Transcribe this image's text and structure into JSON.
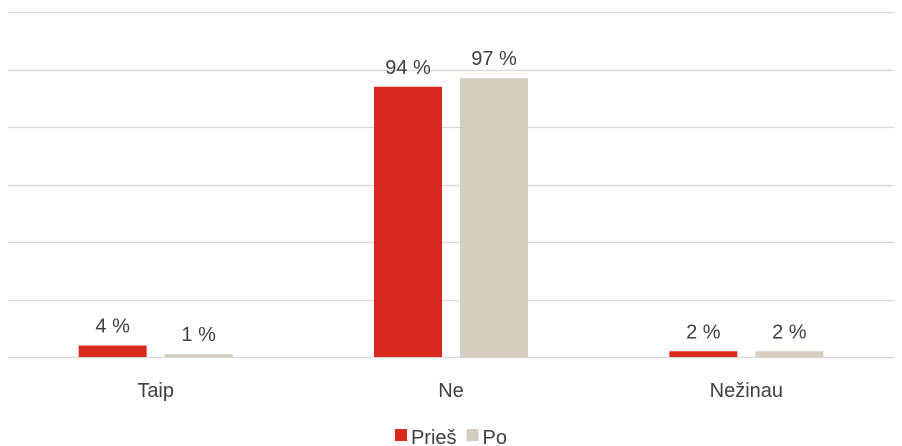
{
  "chart_data": {
    "type": "bar",
    "title": "",
    "xlabel": "",
    "ylabel": "",
    "ylim": [
      0,
      120
    ],
    "y_tick_step": 20,
    "grid": true,
    "categories": [
      "Taip",
      "Ne",
      "Nežinau"
    ],
    "series": [
      {
        "name": "Prieš",
        "values": [
          4,
          94,
          2
        ],
        "labels": [
          "4 %",
          "94 %",
          "2 %"
        ],
        "color": "#d9281d"
      },
      {
        "name": "Po",
        "values": [
          1,
          97,
          2
        ],
        "labels": [
          "1 %",
          "97 %",
          "2 %"
        ],
        "color": "#d5cdbf"
      }
    ],
    "legend_position": "bottom-center"
  },
  "colors": {
    "gridline": "#d9d9d9",
    "axis": "#d9d9d9",
    "text": "#404040"
  }
}
